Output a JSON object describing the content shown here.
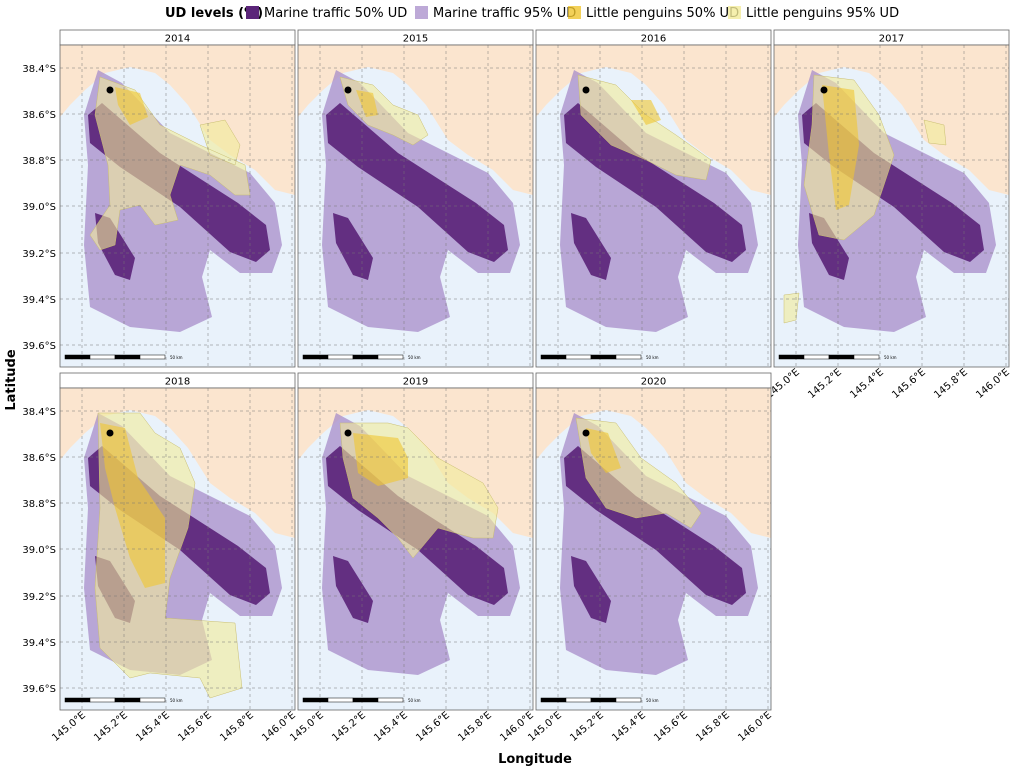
{
  "legend": {
    "title": "UD levels (%)",
    "items": [
      "Marine traffic 50% UD",
      "Marine traffic 95% UD",
      "Little penguins 50% UD",
      "Little penguins 95% UD"
    ]
  },
  "panels": [
    {
      "title": "2014"
    },
    {
      "title": "2015"
    },
    {
      "title": "2016"
    },
    {
      "title": "2017"
    },
    {
      "title": "2018"
    },
    {
      "title": "2019"
    },
    {
      "title": "2020"
    }
  ],
  "axes": {
    "y_label": "Latitude",
    "x_label": "Longitude",
    "lat_ticks": [
      "38.4°S",
      "38.6°S",
      "38.8°S",
      "39.0°S",
      "39.2°S",
      "39.4°S",
      "39.6°S"
    ],
    "lon_ticks": [
      "145.0°E",
      "145.2°E",
      "145.4°E",
      "145.6°E",
      "145.8°E",
      "146.0°E"
    ]
  },
  "scale_bar": "50 km"
}
